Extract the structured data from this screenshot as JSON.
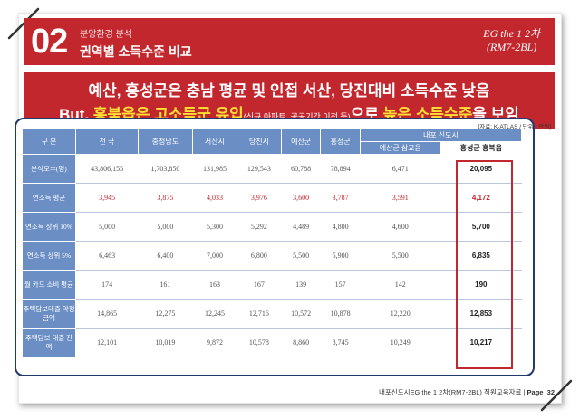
{
  "header": {
    "section_number": "02",
    "section_small": "분양환경 분석",
    "section_title": "권역별 소득수준 비교",
    "brand_line1": "EG the 1 2차",
    "brand_line2": "(RM7-2BL)"
  },
  "banner": {
    "line1": "예산, 홍성군은 충남 평균 및 인접 서산, 당진대비 소득수준 낮음",
    "line2_a": "But, ",
    "line2_hl1": "홍북읍은 고소득군 유입",
    "line2_small": "(신규 아파트, 공공기간 이전 등)",
    "line2_b": "으로 ",
    "line2_hl2": "높은 소득수준",
    "line2_c": "을 보임"
  },
  "table": {
    "source": "[자료: K-ATLAS / 단위 : 만원]",
    "headers": {
      "label": "구 분",
      "national": "전 국",
      "chungnam": "충청남도",
      "seosan": "서산시",
      "dangjin": "당진시",
      "yesan": "예산군",
      "hongseong": "홍성군",
      "naepo_group": "내포 신도시",
      "yesan_sapgyo": "예산군 삽교읍",
      "hongseong_hongbuk": "홍성군 홍북읍"
    },
    "rows": [
      {
        "label": "분석모수(명)",
        "v": [
          "43,806,155",
          "1,703,850",
          "131,985",
          "129,543",
          "60,788",
          "78,894",
          "6,471",
          "20,095"
        ]
      },
      {
        "label": "연소득 평균",
        "v": [
          "3,945",
          "3,875",
          "4,033",
          "3,976",
          "3,600",
          "3,787",
          "3,591",
          "4,172"
        ]
      },
      {
        "label": "연소득 상위 10%",
        "v": [
          "5,000",
          "5,000",
          "5,300",
          "5,292",
          "4,489",
          "4,800",
          "4,600",
          "5,700"
        ]
      },
      {
        "label": "연소득 상위 5%",
        "v": [
          "6,463",
          "6,400",
          "7,000",
          "6,800",
          "5,500",
          "5,900",
          "5,500",
          "6,835"
        ]
      },
      {
        "label": "월 카드 소비 평균",
        "v": [
          "174",
          "161",
          "163",
          "167",
          "139",
          "157",
          "142",
          "190"
        ]
      },
      {
        "label": "주택담보대출 약정금액",
        "v": [
          "14,865",
          "12,275",
          "12,245",
          "12,716",
          "10,572",
          "10,878",
          "12,220",
          "12,853"
        ]
      },
      {
        "label": "주택담보 대출 잔액",
        "v": [
          "12,101",
          "10,019",
          "9,872",
          "10,578",
          "8,860",
          "8,745",
          "10,249",
          "10,217"
        ]
      }
    ]
  },
  "footer": {
    "text": "내포신도시EG the 1 2차(RM7-2BL)  직원교육자료 |",
    "page": "Page_32"
  },
  "colors": {
    "brand_red": "#c2272d",
    "header_blue": "#6b8fc4",
    "frame_navy": "#1f3a6b",
    "highlight_yellow": "#ffe033"
  }
}
